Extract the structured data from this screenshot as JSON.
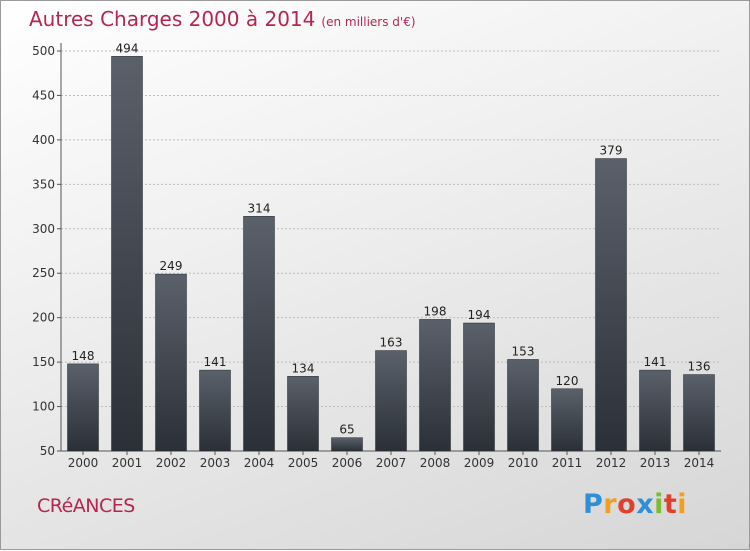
{
  "title": "Autres Charges 2000 à 2014",
  "subtitle": "(en milliers d'€)",
  "location": "CRéANCES",
  "logo": {
    "letters": [
      "P",
      "r",
      "o",
      "x",
      "i",
      "t",
      "i"
    ],
    "colors": [
      "#2e8fd6",
      "#f29f1f",
      "#e0412f",
      "#2e8fd6",
      "#7cbb35",
      "#e0412f",
      "#f29f1f"
    ]
  },
  "colors": {
    "title": "#b5264f",
    "bar_top": "#5a616a",
    "bar_bottom": "#2b3038",
    "grid": "#bdbdbd"
  },
  "chart_data": {
    "type": "bar",
    "title": "Autres Charges 2000 à 2014",
    "subtitle": "(en milliers d'€)",
    "xlabel": "",
    "ylabel": "",
    "categories": [
      "2000",
      "2001",
      "2002",
      "2003",
      "2004",
      "2005",
      "2006",
      "2007",
      "2008",
      "2009",
      "2010",
      "2011",
      "2012",
      "2013",
      "2014"
    ],
    "values": [
      148,
      494,
      249,
      141,
      314,
      134,
      65,
      163,
      198,
      194,
      153,
      120,
      379,
      141,
      136
    ],
    "ylim": [
      50,
      500
    ],
    "yticks": [
      50,
      100,
      150,
      200,
      250,
      300,
      350,
      400,
      450,
      500
    ],
    "grid": true,
    "data_labels": true
  }
}
